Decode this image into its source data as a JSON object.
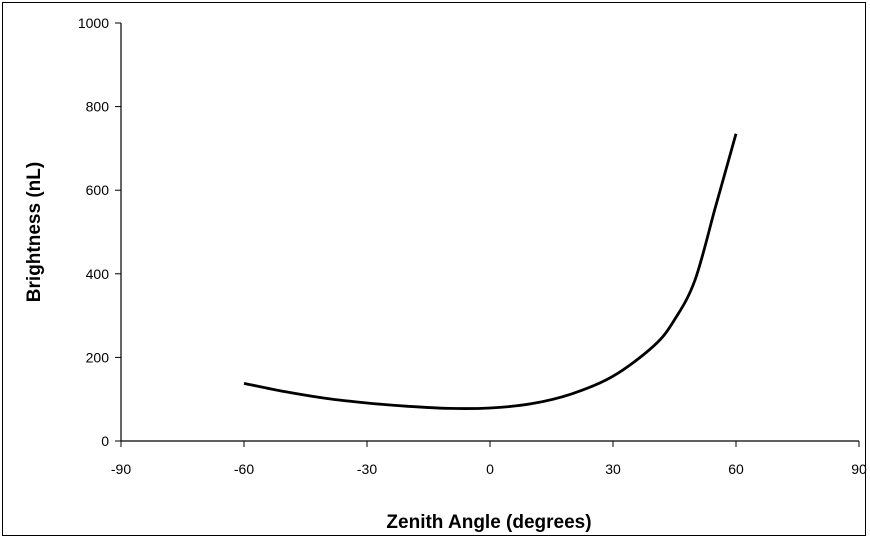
{
  "chart_data": {
    "type": "line",
    "title": "",
    "xlabel": "Zenith Angle (degrees)",
    "ylabel": "Brightness (nL)",
    "xlim": [
      -90,
      90
    ],
    "ylim": [
      0,
      1000
    ],
    "x_ticks": [
      -90,
      -60,
      -30,
      0,
      30,
      60,
      90
    ],
    "y_ticks": [
      0,
      200,
      400,
      600,
      800,
      1000
    ],
    "x_tick_labels": [
      "-90",
      "-60",
      "-30",
      "0",
      "30",
      "60",
      "90"
    ],
    "y_tick_labels": [
      "0",
      "200",
      "400",
      "600",
      "800",
      "1000"
    ],
    "grid": false,
    "legend": "none",
    "line_color": "#000000",
    "series": [
      {
        "x": [
          -60,
          -50,
          -40,
          -30,
          -20,
          -10,
          0,
          10,
          20,
          30,
          40,
          45,
          50,
          55,
          60
        ],
        "y": [
          138,
          118,
          102,
          91,
          83,
          78,
          79,
          89,
          113,
          155,
          228,
          290,
          385,
          560,
          735
        ]
      }
    ]
  }
}
